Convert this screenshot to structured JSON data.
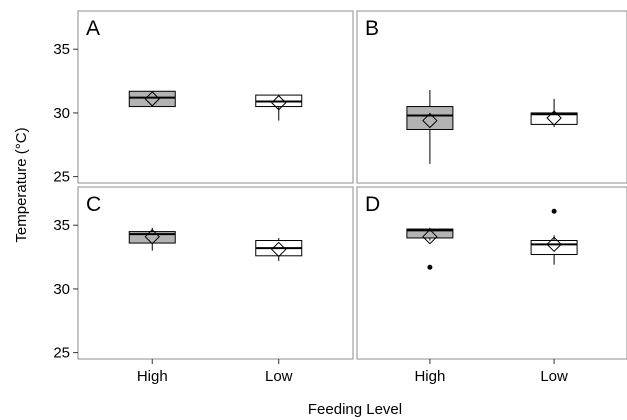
{
  "chart_data": {
    "type": "box",
    "xlabel": "Feeding Level",
    "ylabel": "Temperature (°C)",
    "categories": [
      "High",
      "Low"
    ],
    "ylim": [
      24.5,
      38
    ],
    "yticks": [
      25,
      30,
      35
    ],
    "grid": false,
    "colors": {
      "High": "#b3b3b3",
      "Low": "#ffffff",
      "outline": "#000000"
    },
    "panels": [
      {
        "label": "A",
        "boxes": [
          {
            "category": "High",
            "whisker_low": 30.5,
            "q1": 30.5,
            "median": 31.2,
            "q3": 31.7,
            "whisker_high": 31.7,
            "mean": 31.1,
            "outliers": []
          },
          {
            "category": "Low",
            "whisker_low": 29.4,
            "q1": 30.5,
            "median": 30.9,
            "q3": 31.4,
            "whisker_high": 31.4,
            "mean": 30.8,
            "outliers": []
          }
        ]
      },
      {
        "label": "B",
        "boxes": [
          {
            "category": "High",
            "whisker_low": 26.0,
            "q1": 28.7,
            "median": 29.8,
            "q3": 30.5,
            "whisker_high": 31.8,
            "mean": 29.4,
            "outliers": []
          },
          {
            "category": "Low",
            "whisker_low": 28.9,
            "q1": 29.1,
            "median": 29.9,
            "q3": 30.0,
            "whisker_high": 31.1,
            "mean": 29.6,
            "outliers": []
          }
        ]
      },
      {
        "label": "C",
        "boxes": [
          {
            "category": "High",
            "whisker_low": 33.0,
            "q1": 33.6,
            "median": 34.3,
            "q3": 34.5,
            "whisker_high": 34.8,
            "mean": 34.1,
            "outliers": []
          },
          {
            "category": "Low",
            "whisker_low": 32.2,
            "q1": 32.6,
            "median": 33.2,
            "q3": 33.8,
            "whisker_high": 34.0,
            "mean": 33.1,
            "outliers": []
          }
        ]
      },
      {
        "label": "D",
        "boxes": [
          {
            "category": "High",
            "whisker_low": 33.8,
            "q1": 34.0,
            "median": 34.6,
            "q3": 34.7,
            "whisker_high": 34.8,
            "mean": 34.1,
            "outliers": [
              31.7
            ]
          },
          {
            "category": "Low",
            "whisker_low": 31.9,
            "q1": 32.7,
            "median": 33.5,
            "q3": 33.8,
            "whisker_high": 34.2,
            "mean": 33.5,
            "outliers": [
              36.1
            ]
          }
        ]
      }
    ]
  }
}
